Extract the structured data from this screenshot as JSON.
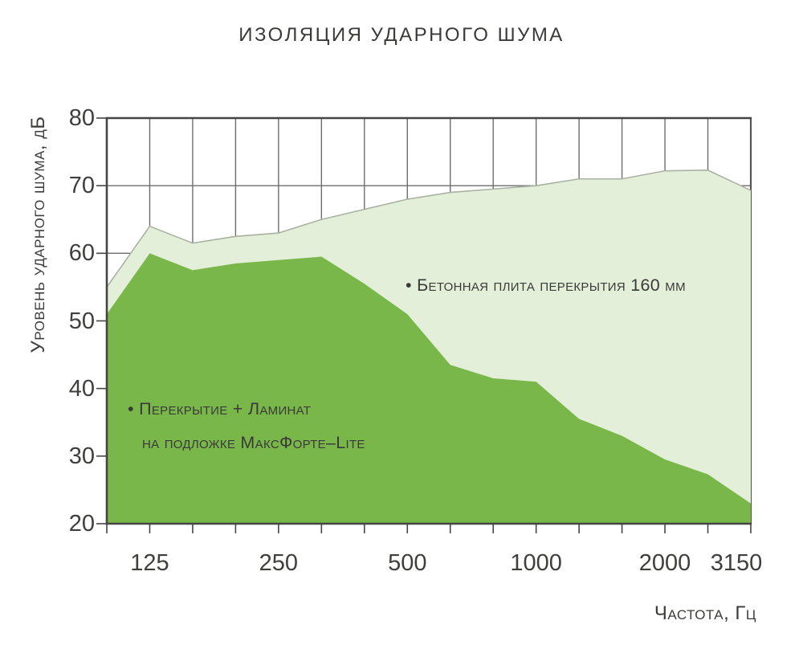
{
  "title": "ИЗОЛЯЦИЯ УДАРНОГО ШУМА",
  "chart_data": {
    "type": "area",
    "title": "ИЗОЛЯЦИЯ УДАРНОГО ШУМА",
    "xlabel": "Частота, Гц",
    "ylabel": "Уровень ударного шума, дБ",
    "x_scale": "one-third-octave bands (log)",
    "x": [
      100,
      125,
      160,
      200,
      250,
      315,
      400,
      500,
      630,
      800,
      1000,
      1250,
      1600,
      2000,
      2500,
      3150
    ],
    "labeled_x_ticks": [
      125,
      250,
      500,
      1000,
      2000,
      3150
    ],
    "ylim": [
      20,
      80
    ],
    "y_ticks": [
      80,
      70,
      60,
      50,
      40,
      30,
      20
    ],
    "grid": true,
    "legend_position": "inline-annotations",
    "series": [
      {
        "name": "Бетонная плита перекрытия 160 мм",
        "color": "#e4efd9",
        "edge_color": "#a9b2a2",
        "values": [
          55,
          64,
          61.5,
          62.5,
          63,
          65,
          66.5,
          68,
          69,
          69.5,
          70,
          71,
          71,
          72.2,
          72.3,
          69.3
        ]
      },
      {
        "name": "Перекрытие + Ламинат на подложке МаксФорте–Lite",
        "color": "#7ab74b",
        "edge_color": "#7ab74b",
        "values": [
          51,
          60,
          57.5,
          58.5,
          59,
          59.5,
          55.5,
          51,
          43.5,
          41.5,
          41,
          35.5,
          33,
          29.5,
          27.3,
          23
        ]
      }
    ],
    "annotations": [
      {
        "text": "• Бетонная плита перекрытия 160 мм"
      },
      {
        "lines": [
          "• Перекрытие + Ламинат",
          "на подложке МаксФорте–Lite"
        ]
      }
    ]
  },
  "colors": {
    "background": "#ffffff",
    "grid": "#6d6d6d",
    "axis": "#454545",
    "text": "#3a3a38",
    "series_concrete": "#e4efd9",
    "series_maxforte": "#7ab74b"
  }
}
